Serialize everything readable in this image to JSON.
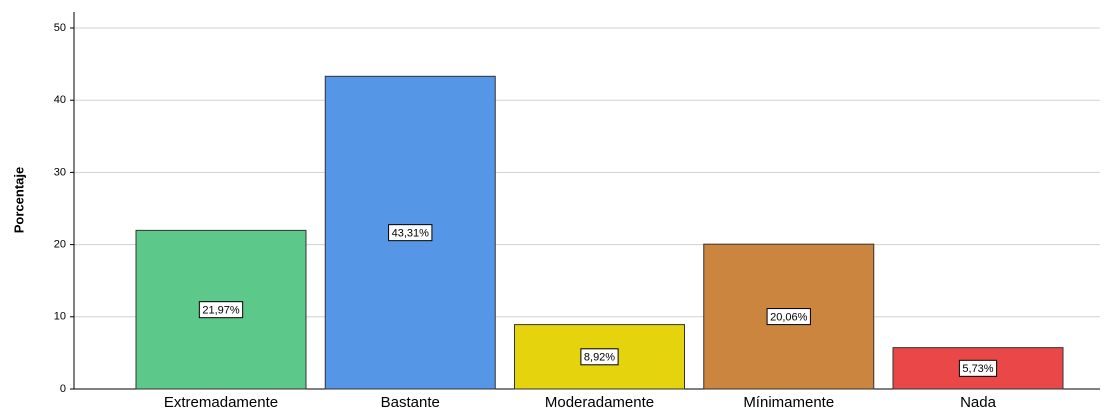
{
  "chart_data": {
    "type": "bar",
    "y_label": "Porcentaje",
    "categories": [
      "Extremadamente",
      "Bastante",
      "Moderadamente",
      "Mínimamente",
      "Nada"
    ],
    "values": [
      21.97,
      43.31,
      8.92,
      20.06,
      5.73
    ],
    "value_labels": [
      "21,97%",
      "43,31%",
      "8,92%",
      "20,06%",
      "5,73%"
    ],
    "colors": [
      "#5cc98a",
      "#5596e6",
      "#e5d30e",
      "#cc853f",
      "#ea4848"
    ],
    "ylim": [
      0,
      50
    ],
    "yticks": [
      0,
      10,
      20,
      30,
      40,
      50
    ],
    "grid": true
  }
}
